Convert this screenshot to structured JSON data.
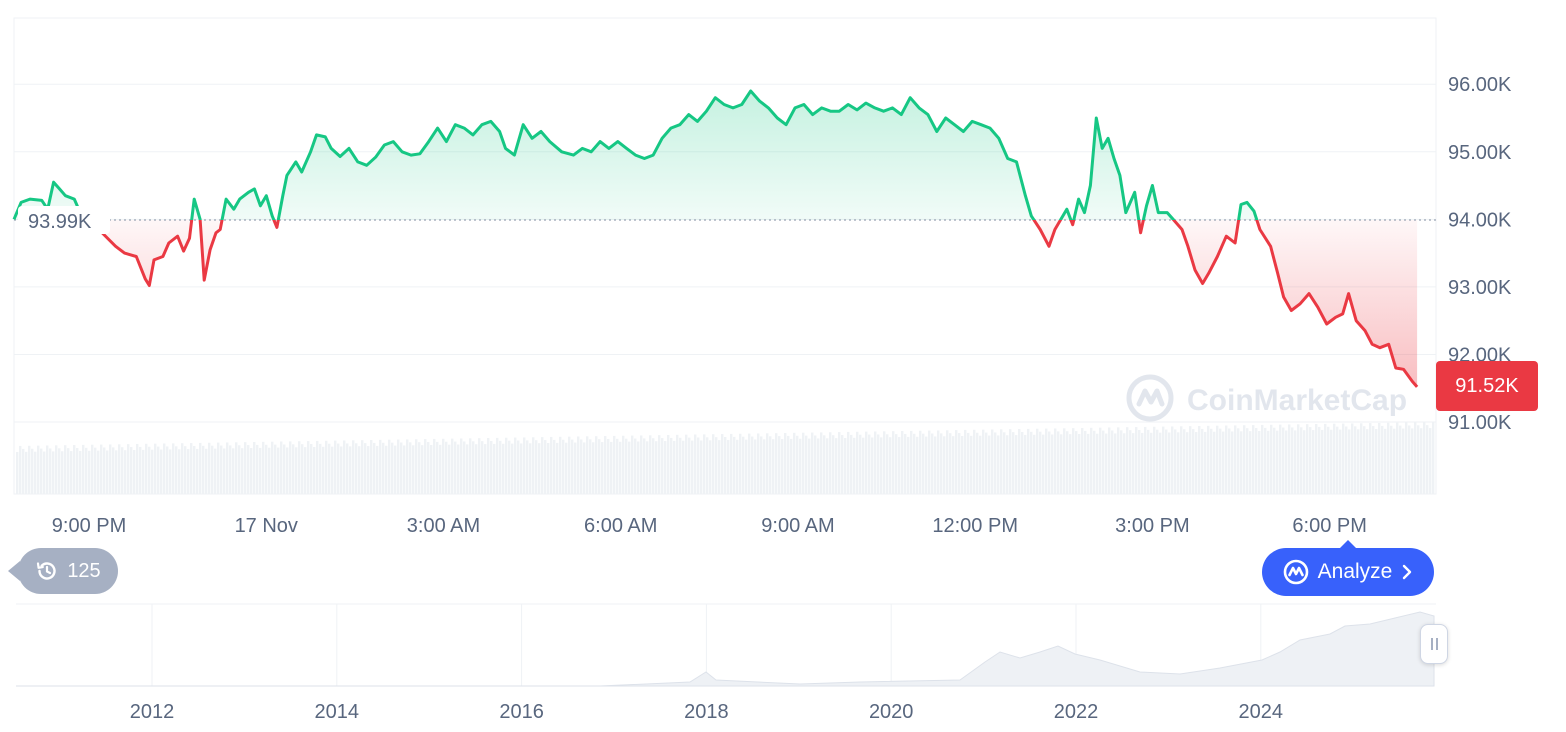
{
  "chart_data": {
    "type": "line",
    "baseline_value": 93.99,
    "baseline_label": "93.99K",
    "current_value": 91.52,
    "current_label": "91.52K",
    "y_ticks": [
      91,
      92,
      93,
      94,
      95,
      96
    ],
    "y_tick_labels": [
      "91.00K",
      "92.00K",
      "93.00K",
      "94.00K",
      "95.00K",
      "96.00K"
    ],
    "ylim": [
      91.0,
      96.98
    ],
    "x_tick_labels": [
      "9:00 PM",
      "17 Nov",
      "3:00 AM",
      "6:00 AM",
      "9:00 AM",
      "12:00 PM",
      "3:00 PM",
      "6:00 PM"
    ],
    "x_tick_hours": [
      2,
      5,
      8,
      11,
      14,
      17,
      20,
      23
    ],
    "xlim_hours": [
      0.73,
      24.8
    ],
    "series": [
      {
        "points": [
          [
            0.73,
            94.0
          ],
          [
            0.85,
            94.25
          ],
          [
            1.0,
            94.3
          ],
          [
            1.2,
            94.28
          ],
          [
            1.3,
            94.15
          ],
          [
            1.4,
            94.55
          ],
          [
            1.5,
            94.45
          ],
          [
            1.6,
            94.35
          ],
          [
            1.75,
            94.3
          ],
          [
            1.9,
            94.0
          ],
          [
            2.0,
            93.88
          ],
          [
            2.2,
            93.82
          ],
          [
            2.45,
            93.6
          ],
          [
            2.6,
            93.5
          ],
          [
            2.8,
            93.45
          ],
          [
            2.95,
            93.12
          ],
          [
            3.02,
            93.02
          ],
          [
            3.1,
            93.4
          ],
          [
            3.25,
            93.45
          ],
          [
            3.35,
            93.65
          ],
          [
            3.5,
            93.75
          ],
          [
            3.6,
            93.53
          ],
          [
            3.7,
            93.72
          ],
          [
            3.78,
            94.3
          ],
          [
            3.88,
            94.0
          ],
          [
            3.95,
            93.1
          ],
          [
            4.05,
            93.55
          ],
          [
            4.15,
            93.8
          ],
          [
            4.22,
            93.85
          ],
          [
            4.32,
            94.3
          ],
          [
            4.45,
            94.15
          ],
          [
            4.55,
            94.3
          ],
          [
            4.7,
            94.4
          ],
          [
            4.8,
            94.45
          ],
          [
            4.9,
            94.2
          ],
          [
            5.0,
            94.35
          ],
          [
            5.1,
            94.05
          ],
          [
            5.18,
            93.88
          ],
          [
            5.28,
            94.35
          ],
          [
            5.35,
            94.65
          ],
          [
            5.5,
            94.85
          ],
          [
            5.6,
            94.7
          ],
          [
            5.75,
            95.0
          ],
          [
            5.85,
            95.25
          ],
          [
            6.0,
            95.22
          ],
          [
            6.1,
            95.05
          ],
          [
            6.25,
            94.93
          ],
          [
            6.4,
            95.05
          ],
          [
            6.55,
            94.85
          ],
          [
            6.7,
            94.8
          ],
          [
            6.85,
            94.92
          ],
          [
            7.0,
            95.1
          ],
          [
            7.15,
            95.15
          ],
          [
            7.3,
            95.0
          ],
          [
            7.45,
            94.95
          ],
          [
            7.6,
            94.97
          ],
          [
            7.75,
            95.15
          ],
          [
            7.9,
            95.35
          ],
          [
            8.05,
            95.15
          ],
          [
            8.2,
            95.4
          ],
          [
            8.35,
            95.35
          ],
          [
            8.5,
            95.25
          ],
          [
            8.65,
            95.4
          ],
          [
            8.8,
            95.45
          ],
          [
            8.95,
            95.3
          ],
          [
            9.05,
            95.05
          ],
          [
            9.2,
            94.95
          ],
          [
            9.35,
            95.4
          ],
          [
            9.5,
            95.2
          ],
          [
            9.65,
            95.3
          ],
          [
            9.8,
            95.15
          ],
          [
            10.0,
            95.0
          ],
          [
            10.2,
            94.95
          ],
          [
            10.35,
            95.05
          ],
          [
            10.5,
            95.0
          ],
          [
            10.65,
            95.15
          ],
          [
            10.8,
            95.05
          ],
          [
            10.95,
            95.15
          ],
          [
            11.1,
            95.05
          ],
          [
            11.25,
            94.95
          ],
          [
            11.4,
            94.9
          ],
          [
            11.55,
            94.95
          ],
          [
            11.7,
            95.2
          ],
          [
            11.85,
            95.35
          ],
          [
            12.0,
            95.4
          ],
          [
            12.15,
            95.55
          ],
          [
            12.3,
            95.45
          ],
          [
            12.45,
            95.6
          ],
          [
            12.6,
            95.8
          ],
          [
            12.75,
            95.7
          ],
          [
            12.9,
            95.65
          ],
          [
            13.05,
            95.7
          ],
          [
            13.2,
            95.9
          ],
          [
            13.35,
            95.75
          ],
          [
            13.5,
            95.65
          ],
          [
            13.65,
            95.5
          ],
          [
            13.8,
            95.4
          ],
          [
            13.95,
            95.65
          ],
          [
            14.1,
            95.7
          ],
          [
            14.25,
            95.55
          ],
          [
            14.4,
            95.65
          ],
          [
            14.55,
            95.6
          ],
          [
            14.7,
            95.6
          ],
          [
            14.85,
            95.7
          ],
          [
            15.0,
            95.62
          ],
          [
            15.15,
            95.72
          ],
          [
            15.3,
            95.65
          ],
          [
            15.45,
            95.6
          ],
          [
            15.6,
            95.65
          ],
          [
            15.75,
            95.55
          ],
          [
            15.9,
            95.8
          ],
          [
            16.05,
            95.65
          ],
          [
            16.2,
            95.55
          ],
          [
            16.35,
            95.3
          ],
          [
            16.5,
            95.5
          ],
          [
            16.65,
            95.4
          ],
          [
            16.8,
            95.3
          ],
          [
            16.95,
            95.45
          ],
          [
            17.1,
            95.4
          ],
          [
            17.25,
            95.35
          ],
          [
            17.4,
            95.2
          ],
          [
            17.55,
            94.9
          ],
          [
            17.7,
            94.85
          ],
          [
            17.85,
            94.35
          ],
          [
            17.95,
            94.05
          ],
          [
            18.1,
            93.85
          ],
          [
            18.25,
            93.6
          ],
          [
            18.35,
            93.85
          ],
          [
            18.45,
            94.0
          ],
          [
            18.55,
            94.15
          ],
          [
            18.65,
            93.92
          ],
          [
            18.75,
            94.3
          ],
          [
            18.85,
            94.1
          ],
          [
            18.95,
            94.5
          ],
          [
            19.05,
            95.5
          ],
          [
            19.15,
            95.05
          ],
          [
            19.25,
            95.2
          ],
          [
            19.35,
            94.9
          ],
          [
            19.45,
            94.65
          ],
          [
            19.55,
            94.1
          ],
          [
            19.7,
            94.4
          ],
          [
            19.8,
            93.8
          ],
          [
            19.9,
            94.2
          ],
          [
            20.0,
            94.5
          ],
          [
            20.1,
            94.1
          ],
          [
            20.25,
            94.1
          ],
          [
            20.35,
            94.0
          ],
          [
            20.5,
            93.85
          ],
          [
            20.6,
            93.6
          ],
          [
            20.72,
            93.25
          ],
          [
            20.85,
            93.05
          ],
          [
            20.95,
            93.2
          ],
          [
            21.1,
            93.45
          ],
          [
            21.25,
            93.75
          ],
          [
            21.4,
            93.65
          ],
          [
            21.5,
            94.22
          ],
          [
            21.6,
            94.25
          ],
          [
            21.72,
            94.12
          ],
          [
            21.82,
            93.85
          ],
          [
            22.0,
            93.6
          ],
          [
            22.12,
            93.2
          ],
          [
            22.22,
            92.85
          ],
          [
            22.35,
            92.65
          ],
          [
            22.5,
            92.75
          ],
          [
            22.65,
            92.9
          ],
          [
            22.8,
            92.7
          ],
          [
            22.95,
            92.45
          ],
          [
            23.1,
            92.55
          ],
          [
            23.22,
            92.6
          ],
          [
            23.32,
            92.9
          ],
          [
            23.45,
            92.5
          ],
          [
            23.6,
            92.35
          ],
          [
            23.72,
            92.15
          ],
          [
            23.85,
            92.1
          ],
          [
            24.0,
            92.15
          ],
          [
            24.12,
            91.8
          ],
          [
            24.25,
            91.78
          ],
          [
            24.4,
            91.6
          ],
          [
            24.48,
            91.52
          ]
        ]
      }
    ]
  },
  "overview": {
    "x_tick_labels": [
      "2012",
      "2014",
      "2016",
      "2018",
      "2020",
      "2022",
      "2024"
    ]
  },
  "watermark": "CoinMarketCap",
  "history_badge": {
    "count": "125",
    "icon": "history-clock-icon"
  },
  "analyze_button": {
    "label": "Analyze",
    "icon": "cmc-logo-icon",
    "chevron": "chevron-right-icon"
  },
  "colors": {
    "up": "#16c784",
    "down": "#ea3943",
    "grid": "#eff2f5",
    "volume": "#eff2f5",
    "axis_text": "#58667e",
    "accent": "#3861fb",
    "badge": "#a6b0c3"
  }
}
